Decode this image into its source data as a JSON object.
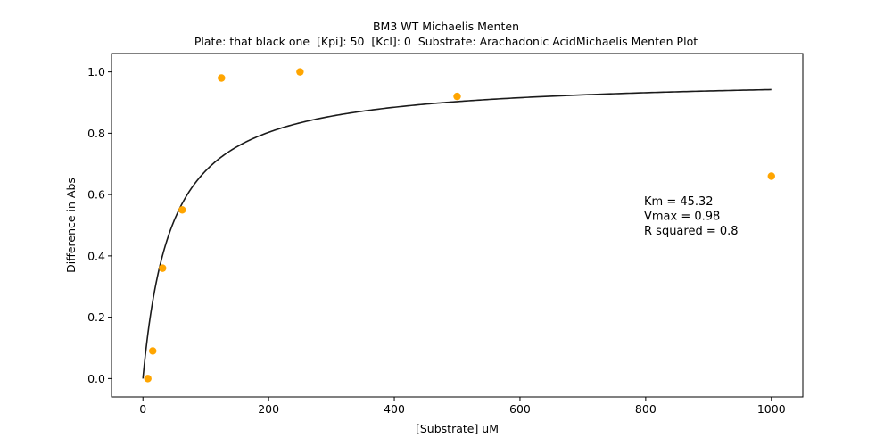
{
  "chart_data": {
    "type": "scatter",
    "title": "BM3 WT Michaelis Menten",
    "subtitle": "Plate: that black one  [Kpi]: 50  [Kcl]: 0  Substrate: Arachadonic AcidMichaelis Menten Plot",
    "xlabel": "[Substrate] uM",
    "ylabel": "Difference in Abs",
    "xlim": [
      -50,
      1050
    ],
    "ylim": [
      -0.06,
      1.06
    ],
    "xticks": [
      0,
      200,
      400,
      600,
      800,
      1000
    ],
    "yticks": [
      0.0,
      0.2,
      0.4,
      0.6,
      0.8,
      1.0
    ],
    "xtick_labels": [
      "0",
      "200",
      "400",
      "600",
      "800",
      "1000"
    ],
    "ytick_labels": [
      "0.0",
      "0.2",
      "0.4",
      "0.6",
      "0.8",
      "1.0"
    ],
    "grid": false,
    "series": [
      {
        "kind": "scatter",
        "color": "#ffa500",
        "x": [
          7.8,
          15.6,
          31.25,
          62.5,
          125,
          250,
          500,
          1000
        ],
        "y": [
          0.0,
          0.09,
          0.36,
          0.55,
          0.98,
          1.0,
          0.92,
          0.66
        ]
      },
      {
        "kind": "fit-line",
        "color": "#1a1a1a",
        "equation": "michaelis-menten",
        "km": 45.32,
        "vmax": 0.985,
        "x_range": [
          0,
          1000
        ]
      }
    ],
    "annotations": [
      "Km = 45.32",
      "Vmax = 0.98",
      "R squared = 0.8"
    ]
  }
}
